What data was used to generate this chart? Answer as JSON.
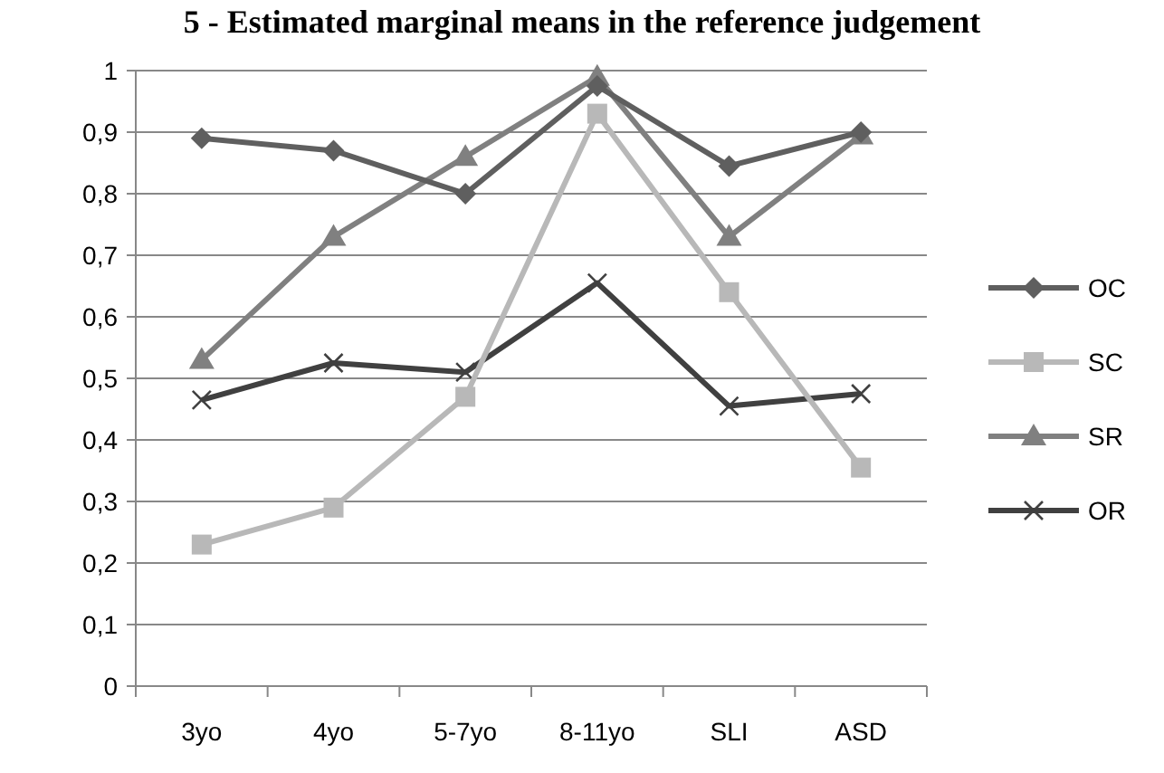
{
  "chart_data": {
    "type": "line",
    "title": "5 - Estimated marginal means in the reference judgement",
    "categories": [
      "3yo",
      "4yo",
      "5-7yo",
      "8-11yo",
      "SLI",
      "ASD"
    ],
    "series": [
      {
        "name": "OC",
        "color": "#5f5f5f",
        "marker": "diamond",
        "values": [
          0.89,
          0.87,
          0.8,
          0.975,
          0.845,
          0.9
        ]
      },
      {
        "name": "SC",
        "color": "#b8b8b8",
        "marker": "square",
        "values": [
          0.23,
          0.29,
          0.47,
          0.93,
          0.64,
          0.355
        ]
      },
      {
        "name": "SR",
        "color": "#808080",
        "marker": "triangle",
        "values": [
          0.53,
          0.73,
          0.86,
          0.99,
          0.73,
          0.895
        ]
      },
      {
        "name": "OR",
        "color": "#404040",
        "marker": "cross",
        "values": [
          0.465,
          0.525,
          0.51,
          0.655,
          0.455,
          0.475
        ]
      }
    ],
    "ylim": [
      0,
      1
    ],
    "yticks": [
      0,
      {
        "value": 0.1,
        "label": "0,1"
      },
      {
        "value": 0.2,
        "label": "0,2"
      },
      {
        "value": 0.3,
        "label": "0,3"
      },
      {
        "value": 0.4,
        "label": "0,4"
      },
      {
        "value": 0.5,
        "label": "0,5"
      },
      {
        "value": 0.6,
        "label": "0,6"
      },
      {
        "value": 0.7,
        "label": "0,7"
      },
      {
        "value": 0.8,
        "label": "0,8"
      },
      {
        "value": 0.9,
        "label": "0,9"
      },
      1
    ],
    "grid": "y",
    "legend": "right",
    "line_style": "solid"
  }
}
